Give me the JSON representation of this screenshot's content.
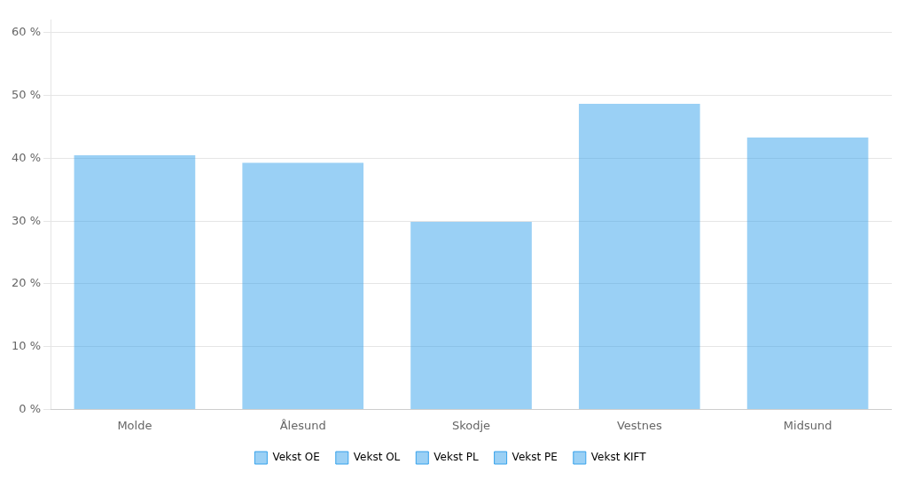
{
  "chart_data": {
    "type": "bar",
    "categories": [
      "Molde",
      "Ålesund",
      "Skodje",
      "Vestnes",
      "Midsund"
    ],
    "values": [
      0.405,
      0.393,
      0.299,
      0.487,
      0.433
    ],
    "ylim": [
      0,
      0.62
    ],
    "yticks": [
      {
        "value": 0.0,
        "label": "0 %"
      },
      {
        "value": 0.1,
        "label": "10 %"
      },
      {
        "value": 0.2,
        "label": "20 %"
      },
      {
        "value": 0.3,
        "label": "30 %"
      },
      {
        "value": 0.4,
        "label": "40 %"
      },
      {
        "value": 0.5,
        "label": "50 %"
      },
      {
        "value": 0.6,
        "label": "60 %"
      }
    ],
    "grid": "y",
    "legend": "bottom",
    "legend_labels": [
      "Vekst OE",
      "Vekst OL",
      "Vekst PL",
      "Vekst PE",
      "Vekst KIFT"
    ]
  }
}
